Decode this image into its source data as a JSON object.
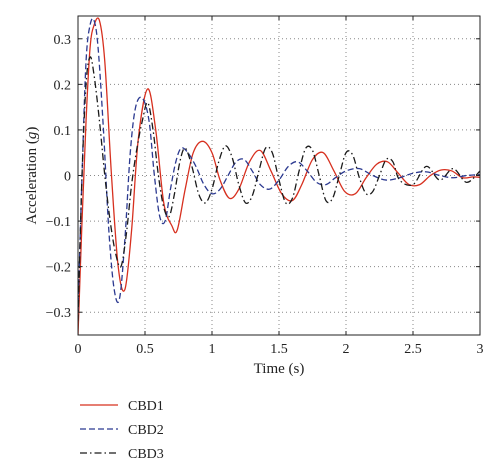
{
  "chart_data": {
    "type": "line",
    "title": "",
    "xlabel": "Time (s)",
    "ylabel_main": "Acceleration (",
    "ylabel_unit": "g",
    "ylabel_close": ")",
    "xlim": [
      0,
      3
    ],
    "ylim": [
      -0.35,
      0.35
    ],
    "x_ticks": [
      0,
      0.5,
      1,
      1.5,
      2,
      2.5,
      3
    ],
    "x_tick_labels": [
      "0",
      "0.5",
      "1",
      "1.5",
      "2",
      "2.5",
      "3"
    ],
    "y_ticks": [
      -0.3,
      -0.2,
      -0.1,
      0,
      0.1,
      0.2,
      0.3
    ],
    "y_tick_labels": [
      "−0.3",
      "−0.2",
      "−0.1",
      "0",
      "0.1",
      "0.2",
      "0.3"
    ],
    "grid": true,
    "legend_position": "below",
    "series": [
      {
        "name": "CBD1",
        "color": "#d7301f",
        "dash": "solid",
        "x": [
          0,
          0.03,
          0.06,
          0.09,
          0.12,
          0.16,
          0.2,
          0.25,
          0.3,
          0.35,
          0.4,
          0.45,
          0.52,
          0.58,
          0.64,
          0.7,
          0.74,
          0.8,
          0.86,
          0.93,
          1.0,
          1.06,
          1.13,
          1.2,
          1.28,
          1.36,
          1.44,
          1.52,
          1.6,
          1.67,
          1.75,
          1.83,
          1.91,
          1.99,
          2.07,
          2.15,
          2.23,
          2.31,
          2.39,
          2.47,
          2.55,
          2.63,
          2.71,
          2.79,
          2.87,
          2.95,
          3.0
        ],
        "y": [
          -0.35,
          -0.1,
          0.12,
          0.28,
          0.33,
          0.34,
          0.25,
          0.0,
          -0.2,
          -0.25,
          -0.12,
          0.08,
          0.19,
          0.1,
          -0.06,
          -0.11,
          -0.12,
          -0.03,
          0.05,
          0.075,
          0.05,
          -0.01,
          -0.05,
          -0.03,
          0.03,
          0.055,
          0.01,
          -0.04,
          -0.055,
          -0.02,
          0.035,
          0.05,
          0.01,
          -0.035,
          -0.04,
          -0.005,
          0.025,
          0.03,
          0.005,
          -0.02,
          -0.02,
          0.0,
          0.012,
          0.01,
          -0.005,
          -0.003,
          -0.004
        ]
      },
      {
        "name": "CBD2",
        "color": "#2b3990",
        "dash": "dashed",
        "x": [
          0,
          0.03,
          0.06,
          0.09,
          0.12,
          0.15,
          0.19,
          0.23,
          0.27,
          0.31,
          0.35,
          0.39,
          0.43,
          0.48,
          0.53,
          0.57,
          0.61,
          0.65,
          0.69,
          0.73,
          0.77,
          0.82,
          0.88,
          0.94,
          1.0,
          1.06,
          1.12,
          1.18,
          1.24,
          1.3,
          1.36,
          1.43,
          1.5,
          1.57,
          1.64,
          1.71,
          1.78,
          1.85,
          1.92,
          2.0,
          2.1,
          2.2,
          2.3,
          2.4,
          2.5,
          2.6,
          2.7,
          2.8,
          2.9,
          3.0
        ],
        "y": [
          -0.3,
          0.0,
          0.25,
          0.33,
          0.34,
          0.28,
          0.1,
          -0.12,
          -0.25,
          -0.27,
          -0.14,
          0.05,
          0.15,
          0.17,
          0.12,
          0.0,
          -0.09,
          -0.1,
          -0.03,
          0.03,
          0.06,
          0.05,
          0.02,
          -0.02,
          -0.04,
          -0.03,
          0.0,
          0.03,
          0.035,
          0.01,
          -0.02,
          -0.03,
          -0.01,
          0.02,
          0.03,
          0.01,
          -0.015,
          -0.02,
          -0.005,
          0.01,
          0.015,
          0.0,
          -0.01,
          -0.005,
          0.005,
          0.008,
          0.0,
          -0.005,
          0.0,
          0.002
        ]
      },
      {
        "name": "CBD3",
        "color": "#1a1a1a",
        "dash": "dashdot",
        "x": [
          0,
          0.03,
          0.06,
          0.09,
          0.12,
          0.16,
          0.2,
          0.24,
          0.28,
          0.32,
          0.36,
          0.4,
          0.44,
          0.48,
          0.52,
          0.56,
          0.6,
          0.64,
          0.68,
          0.72,
          0.76,
          0.8,
          0.85,
          0.9,
          0.95,
          1.0,
          1.05,
          1.1,
          1.15,
          1.2,
          1.25,
          1.3,
          1.35,
          1.4,
          1.45,
          1.5,
          1.55,
          1.6,
          1.65,
          1.7,
          1.75,
          1.8,
          1.85,
          1.9,
          1.95,
          2.0,
          2.05,
          2.1,
          2.15,
          2.2,
          2.25,
          2.3,
          2.35,
          2.4,
          2.5,
          2.6,
          2.7,
          2.8,
          2.9,
          3.0
        ],
        "y": [
          -0.32,
          0.0,
          0.2,
          0.26,
          0.22,
          0.12,
          0.0,
          -0.1,
          -0.17,
          -0.2,
          -0.13,
          -0.02,
          0.06,
          0.12,
          0.16,
          0.1,
          0.0,
          -0.07,
          -0.09,
          -0.04,
          0.03,
          0.06,
          0.02,
          -0.04,
          -0.06,
          -0.03,
          0.03,
          0.065,
          0.04,
          -0.02,
          -0.06,
          -0.045,
          0.01,
          0.06,
          0.05,
          -0.01,
          -0.06,
          -0.05,
          0.01,
          0.06,
          0.055,
          0.0,
          -0.055,
          -0.05,
          0.0,
          0.05,
          0.045,
          -0.005,
          -0.04,
          -0.035,
          0.0,
          0.035,
          0.03,
          -0.01,
          -0.02,
          0.02,
          -0.01,
          0.015,
          -0.015,
          0.01
        ]
      }
    ]
  }
}
